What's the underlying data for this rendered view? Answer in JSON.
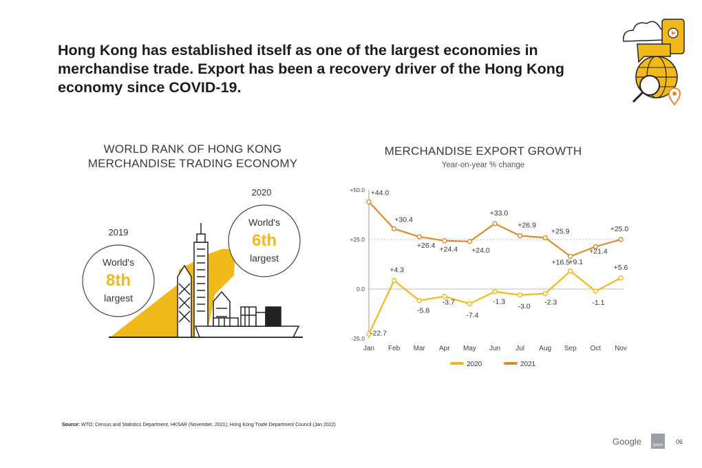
{
  "headline": "Hong Kong has established itself as one of the largest economies in merchandise trade. Export has been a recovery driver of the Hong Kong economy since COVID-19.",
  "left_panel": {
    "title_line1": "WORLD RANK OF HONG KONG",
    "title_line2": "MERCHANDISE TRADING ECONOMY",
    "year_2019": "2019",
    "year_2020": "2020",
    "rank_2019": {
      "prefix": "World's",
      "rank": "8th",
      "suffix": "largest"
    },
    "rank_2020": {
      "prefix": "World's",
      "rank": "6th",
      "suffix": "largest"
    }
  },
  "chart_data": {
    "type": "line",
    "title": "MERCHANDISE EXPORT GROWTH",
    "subtitle": "Year-on-year % change",
    "categories": [
      "Jan",
      "Feb",
      "Mar",
      "Apr",
      "May",
      "Jun",
      "Jul",
      "Aug",
      "Sep",
      "Oct",
      "Nov"
    ],
    "ylim": [
      -25,
      50
    ],
    "yticks": [
      50,
      25,
      0,
      -25
    ],
    "ytick_labels": [
      "+50.0",
      "+25.0",
      "0.0",
      "-25.0"
    ],
    "reference_line": 25,
    "series": [
      {
        "name": "2020",
        "color": "#F2B91A",
        "values": [
          -22.7,
          4.3,
          -5.8,
          -3.7,
          -7.4,
          -1.3,
          -3.0,
          -2.3,
          9.1,
          -1.1,
          5.6
        ],
        "labels": [
          "-22.7",
          "+4.3",
          "-5.8",
          "-3.7",
          "-7.4",
          "-1.3",
          "-3.0",
          "-2.3",
          "+9.1",
          "-1.1",
          "+5.6"
        ]
      },
      {
        "name": "2021",
        "color": "#E08A2E",
        "values": [
          44.0,
          30.4,
          26.4,
          24.4,
          24.0,
          33.0,
          26.9,
          25.9,
          16.5,
          21.4,
          25.0
        ],
        "labels": [
          "+44.0",
          "+30.4",
          "+26.4",
          "+24.4",
          "+24.0",
          "+33.0",
          "+26.9",
          "+25.9",
          "+16.5",
          "+21.4",
          "+25.0"
        ]
      }
    ],
    "legend": [
      "2020",
      "2021"
    ],
    "legend_position": "bottom"
  },
  "colors": {
    "accent": "#F2B91A",
    "orange": "#E08A2E",
    "ink": "#1c1c1c"
  },
  "footer": {
    "source_label": "Source:",
    "source_text": " WTO; Census and Statistics Department, HKSAR (November, 2021); Hong Kong Trade Department Council (Jan 2022)",
    "brand": "Google",
    "partner": "Ipsos",
    "page_number": "06"
  }
}
